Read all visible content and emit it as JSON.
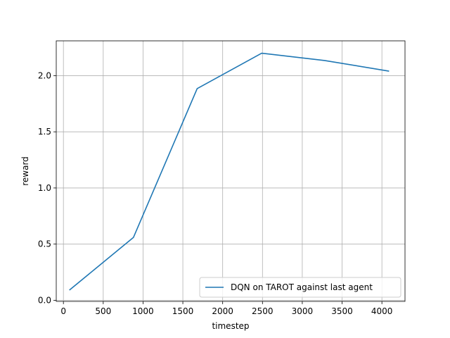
{
  "chart_data": {
    "type": "line",
    "title": "",
    "xlabel": "timestep",
    "ylabel": "reward",
    "xlim": [
      -90,
      4290
    ],
    "ylim": [
      -0.01,
      2.31
    ],
    "xticks": [
      0,
      500,
      1000,
      1500,
      2000,
      2500,
      3000,
      3500,
      4000
    ],
    "xtick_labels": [
      "0",
      "500",
      "1000",
      "1500",
      "2000",
      "2500",
      "3000",
      "3500",
      "4000"
    ],
    "yticks": [
      0.0,
      0.5,
      1.0,
      1.5,
      2.0
    ],
    "ytick_labels": [
      "0.0",
      "0.5",
      "1.0",
      "1.5",
      "2.0"
    ],
    "grid": true,
    "legend_position": "lower-right",
    "series": [
      {
        "name": "DQN on TAROT against last agent",
        "color": "#1f77b4",
        "x": [
          75,
          880,
          1680,
          2490,
          3280,
          4090
        ],
        "y": [
          0.09,
          0.56,
          1.885,
          2.2,
          2.135,
          2.04
        ]
      }
    ]
  }
}
